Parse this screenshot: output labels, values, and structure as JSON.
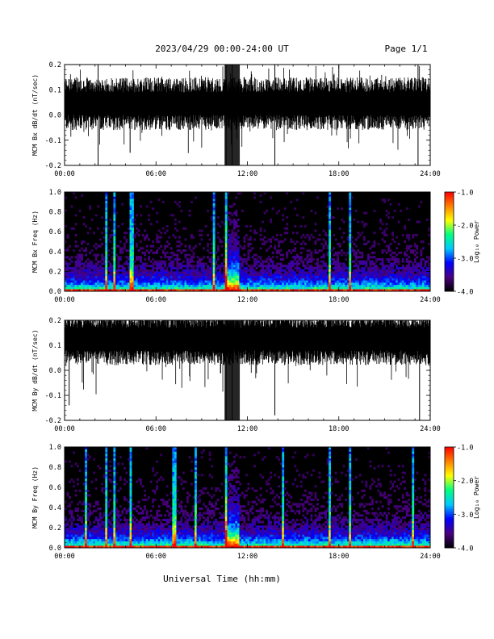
{
  "header": {
    "title": "2023/04/29  00:00-24:00 UT",
    "page": "Page 1/1"
  },
  "footer": {
    "xlabel": "Universal Time (hh:mm)"
  },
  "colors": {
    "line": "#000000",
    "background": "#ffffff",
    "spectrogram_scale": [
      "#000000",
      "#4b0082",
      "#0000ff",
      "#00c8ff",
      "#00ff80",
      "#ffff00",
      "#ff8000",
      "#ff0000"
    ]
  },
  "chart_data": [
    {
      "type": "line",
      "ylabel": "MCM Bx dB/dt (nT/sec)",
      "xlim": [
        0,
        24
      ],
      "ylim": [
        -0.2,
        0.2
      ],
      "x_tick_labels": [
        "00:00",
        "06:00",
        "12:00",
        "18:00",
        "24:00"
      ],
      "y_tick_labels": [
        "-0.2",
        "-0.1",
        "0.0",
        "0.1",
        "0.2"
      ],
      "series": [
        {
          "baseline": 0.03,
          "noise_band": [
            -0.03,
            0.12
          ],
          "spikes": [
            {
              "t": 2.2,
              "min": -0.2,
              "max": 0.2
            },
            {
              "t": 4.3,
              "min": -0.15,
              "max": 0.1
            },
            {
              "t": 10.6,
              "min": -0.2,
              "max": 0.2
            },
            {
              "t": 11.0,
              "min": -0.2,
              "max": 0.2
            },
            {
              "t": 13.8,
              "min": -0.2,
              "max": 0.2
            },
            {
              "t": 18.0,
              "min": -0.02,
              "max": 0.2
            },
            {
              "t": 23.2,
              "min": -0.2,
              "max": 0.2
            }
          ]
        }
      ]
    },
    {
      "type": "heatmap",
      "ylabel": "MCM Bx Freq (Hz)",
      "xlim": [
        0,
        24
      ],
      "ylim": [
        0.0,
        1.0
      ],
      "x_tick_labels": [
        "00:00",
        "06:00",
        "12:00",
        "18:00",
        "24:00"
      ],
      "y_tick_labels": [
        "0.0",
        "0.2",
        "0.4",
        "0.6",
        "0.8",
        "1.0"
      ],
      "colorbar": {
        "label": "Log₁₀ Power",
        "range": [
          -4.0,
          -1.0
        ],
        "tick_labels": [
          "-1.0",
          "-2.0",
          "-3.0",
          "-4.0"
        ]
      },
      "bright_columns": [
        2.7,
        3.3,
        4.3,
        4.5,
        9.8,
        10.6,
        17.4,
        18.7
      ],
      "active_interval": [
        10.5,
        11.5
      ]
    },
    {
      "type": "line",
      "ylabel": "MCM By dB/dt (nT/sec)",
      "xlim": [
        0,
        24
      ],
      "ylim": [
        -0.2,
        0.2
      ],
      "x_tick_labels": [
        "00:00",
        "06:00",
        "12:00",
        "18:00",
        "24:00"
      ],
      "y_tick_labels": [
        "-0.2",
        "-0.1",
        "0.0",
        "0.1",
        "0.2"
      ],
      "series": [
        {
          "baseline": 0.13,
          "noise_band": [
            0.05,
            0.2
          ],
          "spikes": [
            {
              "t": 0.3,
              "min": -0.14,
              "max": 0.2
            },
            {
              "t": 10.6,
              "min": -0.2,
              "max": 0.2
            },
            {
              "t": 11.0,
              "min": -0.2,
              "max": 0.2
            },
            {
              "t": 13.8,
              "min": -0.18,
              "max": 0.2
            },
            {
              "t": 23.3,
              "min": -0.2,
              "max": 0.2
            }
          ]
        }
      ]
    },
    {
      "type": "heatmap",
      "ylabel": "MCM By Freq (Hz)",
      "xlim": [
        0,
        24
      ],
      "ylim": [
        0.0,
        1.0
      ],
      "x_tick_labels": [
        "00:00",
        "06:00",
        "12:00",
        "18:00",
        "24:00"
      ],
      "y_tick_labels": [
        "0.0",
        "0.2",
        "0.4",
        "0.6",
        "0.8",
        "1.0"
      ],
      "colorbar": {
        "label": "Log₁₀ Power",
        "range": [
          -4.0,
          -1.0
        ],
        "tick_labels": [
          "-1.0",
          "-2.0",
          "-3.0",
          "-4.0"
        ]
      },
      "bright_columns": [
        1.4,
        2.7,
        3.3,
        4.3,
        7.2,
        8.6,
        10.6,
        14.3,
        17.4,
        18.7,
        22.9
      ],
      "active_interval": [
        10.5,
        11.5
      ]
    }
  ]
}
